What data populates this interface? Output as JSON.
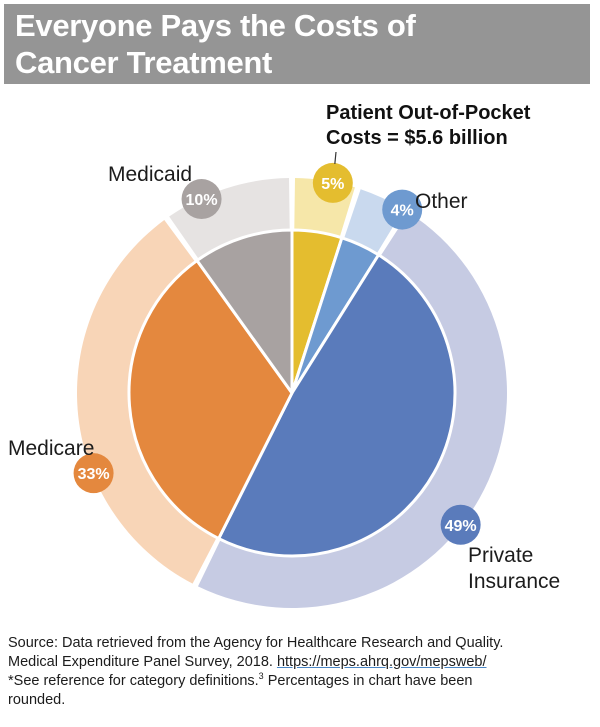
{
  "title": {
    "line1": "Everyone Pays the Costs of",
    "line2": "Cancer Treatment"
  },
  "callout": {
    "line1": "Patient Out-of-Pocket",
    "line2": "Costs = $5.6 billion"
  },
  "chart_data": {
    "type": "pie",
    "unit": "%",
    "slices": [
      {
        "key": "patient",
        "label": "",
        "value": 5,
        "pct_label": "5%",
        "color": "#e4bd2f",
        "ring_color": "#f6e7a9"
      },
      {
        "key": "other",
        "label": "Other",
        "value": 4,
        "pct_label": "4%",
        "color": "#6e9ad0",
        "ring_color": "#c9d9ee"
      },
      {
        "key": "private",
        "label": "Private Insurance",
        "value": 49,
        "pct_label": "49%",
        "color": "#5a7bbb",
        "ring_color": "#c6cbe3"
      },
      {
        "key": "medicare",
        "label": "Medicare",
        "value": 33,
        "pct_label": "33%",
        "color": "#e4883e",
        "ring_color": "#f8d5b7"
      },
      {
        "key": "medicaid",
        "label": "Medicaid",
        "value": 10,
        "pct_label": "10%",
        "color": "#a8a2a1",
        "ring_color": "#e6e3e2"
      }
    ],
    "badge_text_color": "#ffffff"
  },
  "labels": {
    "medicaid": "Medicaid",
    "other": "Other",
    "medicare": "Medicare",
    "private_line1": "Private",
    "private_line2": "Insurance"
  },
  "source": {
    "line1": "Source: Data retrieved from the Agency for Healthcare Research and Quality.",
    "line2_prefix": "Medical Expenditure Panel Survey, 2018. ",
    "link": "https://meps.ahrq.gov/mepsweb/",
    "line3_prefix": "*See reference for category definitions.",
    "ref": "3",
    "line3_suffix": " Percentages in chart have been",
    "line4": "rounded."
  }
}
